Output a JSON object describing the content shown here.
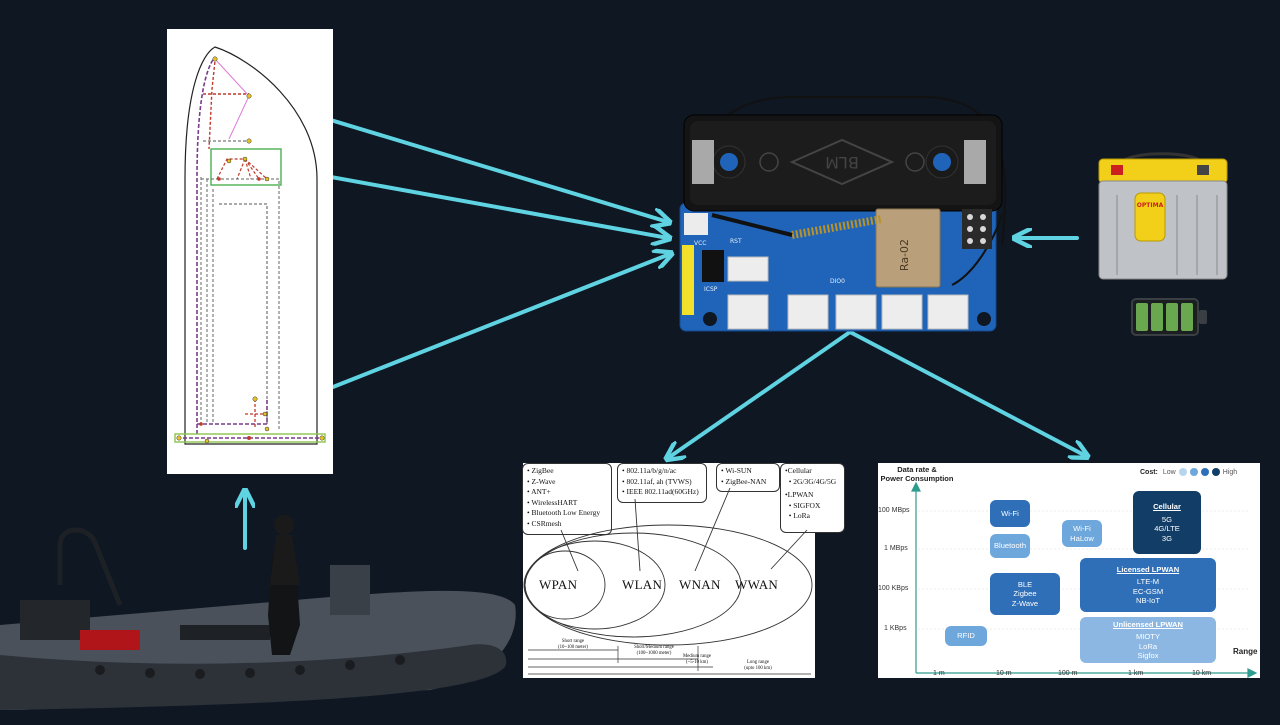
{
  "colors": {
    "background": "#0f1723",
    "arrow": "#5fd3e1",
    "board_blue": "#1f64b8",
    "battery_green": "#6aa84f"
  },
  "wireless": {
    "wpan_items": [
      "ZigBee",
      "Z-Wave",
      "ANT+",
      "WirelessHART",
      "Bluetooth Low Energy",
      "CSRmesh"
    ],
    "wlan_items": [
      "802.11a/b/g/n/ac",
      "802.11af, ah (TVWS)",
      "IEEE 802.11ad(60GHz)"
    ],
    "wnan_items": [
      "Wi-SUN",
      "ZigBee-NAN"
    ],
    "wwan_items": [
      "Cellular",
      "2G/3G/4G/5G",
      "LPWAN",
      "SIGFOX",
      "LoRa"
    ],
    "labels": {
      "wpan": "WPAN",
      "wlan": "WLAN",
      "wnan": "WNAN",
      "wwan": "WWAN"
    },
    "ranges": {
      "short": "Short range\n(10~100 meter)",
      "short_medium": "Short/Medium range\n(100~1000 meter)",
      "medium": "Medium range\n(~5-10 km)",
      "long": "Long range\n(upto 100 km)"
    }
  },
  "lpwan": {
    "ylabel": "Data rate &\nPower Consumption",
    "xlabel": "Range",
    "cost_label": "Cost:",
    "cost_low": "Low",
    "cost_high": "High",
    "cost_colors": [
      "#b9d5ee",
      "#6ea7dc",
      "#2e6fb8",
      "#123d66"
    ],
    "y_ticks": [
      "100 MBps",
      "1 MBps",
      "100 KBps",
      "1 KBps"
    ],
    "x_ticks": [
      "1 m",
      "10 m",
      "100 m",
      "1 km",
      "10 km"
    ],
    "boxes": {
      "wifi": "Wi-Fi",
      "bluetooth": "Bluetooth",
      "wifi_halow": "Wi-Fi\nHaLow",
      "cellular_title": "Cellular",
      "cellular_body": "5G\n4G/LTE\n3G",
      "ble": "BLE\nZigbee\nZ-Wave",
      "licensed_title": "Licensed LPWAN",
      "licensed_body": "LTE-M\nEC-GSM\nNB-IoT",
      "rfid": "RFID",
      "unlicensed_title": "Unlicensed LPWAN",
      "unlicensed_body": "MIOTY\nLoRa\nSigfox"
    }
  },
  "board": {
    "module_name": "Ra-02",
    "silk": [
      "DIO0",
      "RST",
      "ICSP",
      "VCC",
      "BLM"
    ]
  },
  "battery": {
    "brand": "OPTIMA",
    "level_bars": 4
  }
}
